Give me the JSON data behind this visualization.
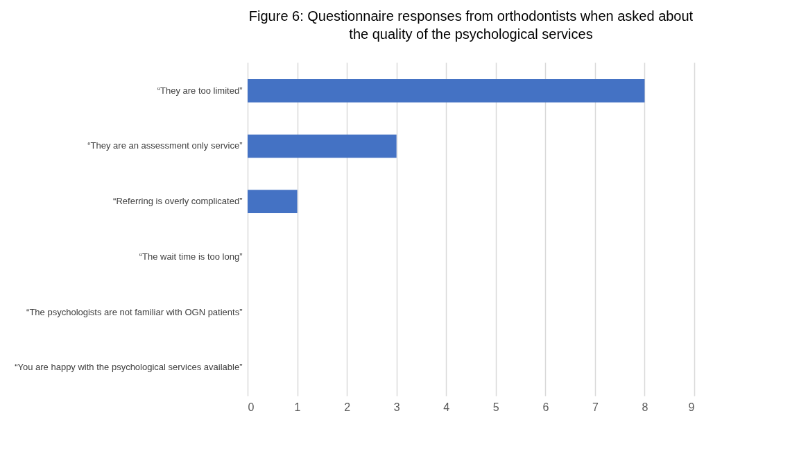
{
  "chart_data": {
    "type": "bar",
    "orientation": "horizontal",
    "title": "Figure 6: Questionnaire responses from orthodontists when asked about the quality of the psychological services",
    "categories": [
      "“They are too limited”",
      "“They are an assessment only service”",
      "“Referring is overly complicated”",
      "“The wait time is too long”",
      "“The psychologists are not familiar with OGN patients”",
      "“You are happy with the psychological services available”"
    ],
    "values": [
      8,
      3,
      1,
      0,
      0,
      0
    ],
    "color": "#4472c4",
    "xlim": [
      0,
      9
    ],
    "xticks": [
      0,
      1,
      2,
      3,
      4,
      5,
      6,
      7,
      8,
      9
    ],
    "grid": "x"
  }
}
